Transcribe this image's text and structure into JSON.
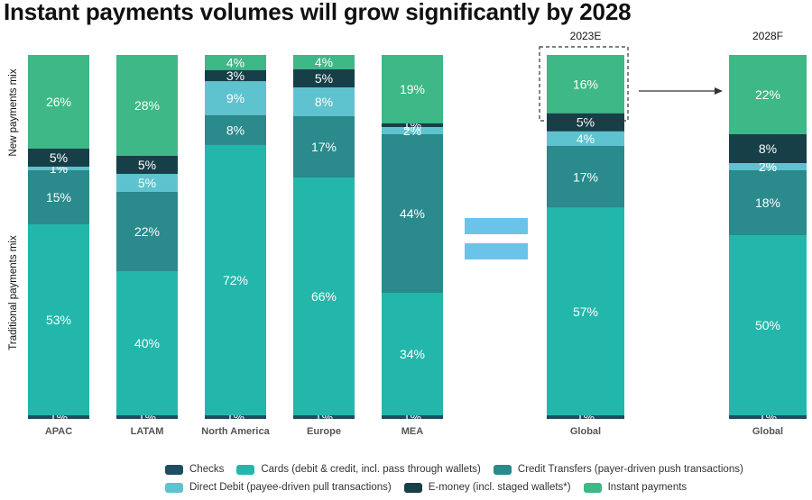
{
  "title": "Instant payments volumes will grow significantly by 2028",
  "colors": {
    "checks": "#1c4e61",
    "cards": "#23b7ab",
    "credit_transfers": "#2a8a8c",
    "direct_debit": "#5ec3cf",
    "emoney": "#173f48",
    "instant": "#3db886",
    "equals": "#6cc3ea",
    "axis_label": "#111111",
    "segment_label": "#ffffff"
  },
  "chart_data": {
    "type": "bar",
    "stacked": true,
    "categories": [
      "APAC",
      "LATAM",
      "North America",
      "Europe",
      "MEA",
      "Global",
      "Global"
    ],
    "column_headers": [
      "",
      "",
      "",
      "",
      "",
      "2023E",
      "2028F"
    ],
    "series": [
      {
        "name": "Checks",
        "key": "checks",
        "values": [
          1,
          1,
          1,
          1,
          1,
          1,
          1
        ]
      },
      {
        "name": "Cards (debit & credit, incl. pass through wallets)",
        "key": "cards",
        "values": [
          53,
          40,
          72,
          66,
          34,
          57,
          50
        ]
      },
      {
        "name": "Credit Transfers (payer-driven push transactions)",
        "key": "credit_transfers",
        "values": [
          15,
          22,
          8,
          17,
          44,
          17,
          18
        ]
      },
      {
        "name": "Direct Debit (payee-driven pull transactions)",
        "key": "direct_debit",
        "values": [
          1,
          5,
          9,
          8,
          2,
          4,
          2
        ]
      },
      {
        "name": "E-money (incl. staged wallets*)",
        "key": "emoney",
        "values": [
          5,
          5,
          3,
          5,
          1,
          5,
          8
        ]
      },
      {
        "name": "Instant payments",
        "key": "instant",
        "values": [
          26,
          28,
          4,
          4,
          19,
          16,
          22
        ]
      }
    ],
    "ylabels": {
      "traditional": "Traditional payments mix",
      "new": "New payments mix"
    },
    "legend_position": "bottom",
    "highlight": "dashed box around 2023E New payments mix (E-money + Instant payments)"
  }
}
